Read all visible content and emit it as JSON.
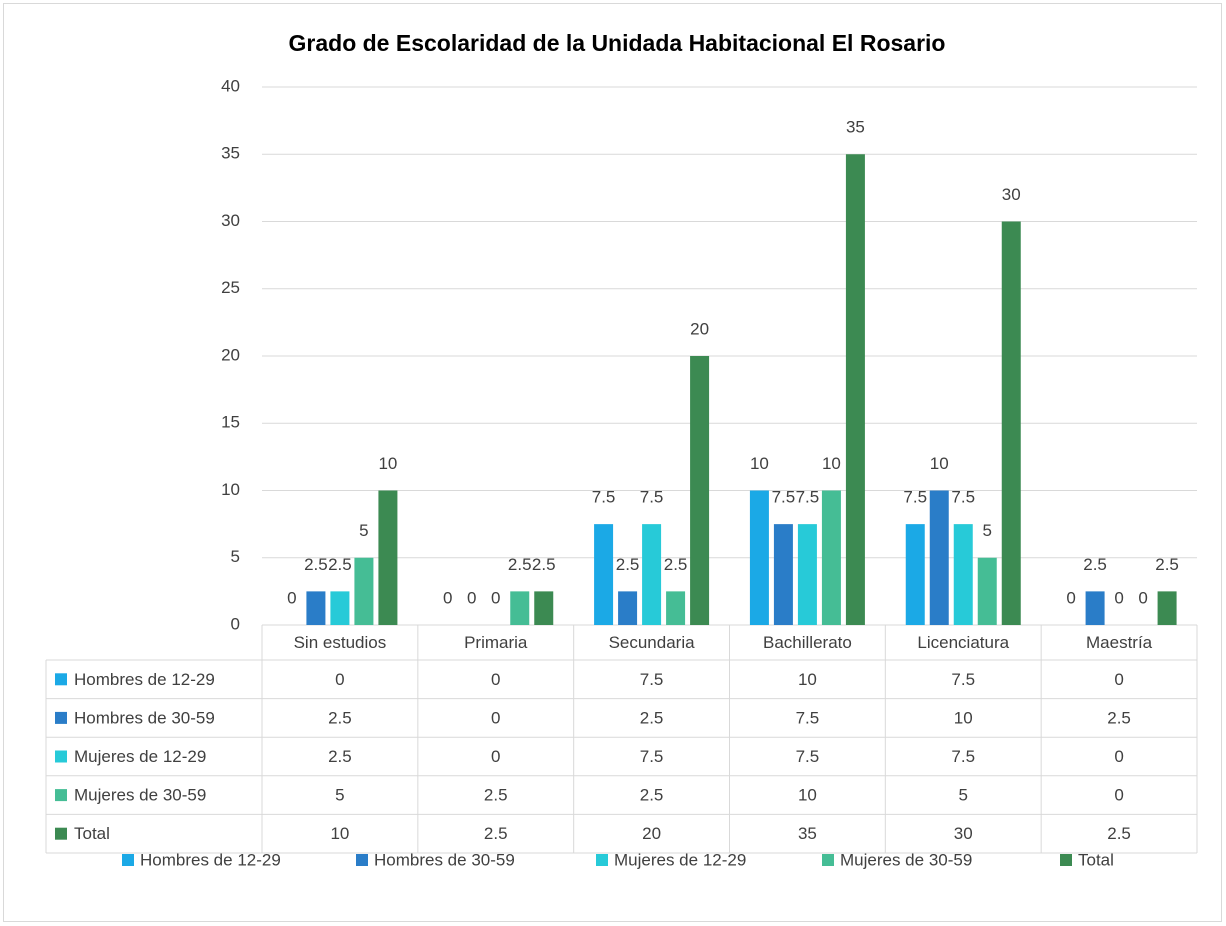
{
  "chart_data": {
    "type": "bar",
    "title": "Grado de Escolaridad de la Unidada Habitacional El Rosario",
    "categories": [
      "Sin estudios",
      "Primaria",
      "Secundaria",
      "Bachillerato",
      "Licenciatura",
      "Maestría"
    ],
    "series": [
      {
        "name": "Hombres de 12-29",
        "color": "#1ba9e6",
        "values": [
          0,
          0,
          7.5,
          10,
          7.5,
          0
        ]
      },
      {
        "name": "Hombres de 30-59",
        "color": "#2a7dc8",
        "values": [
          2.5,
          0,
          2.5,
          7.5,
          10,
          2.5
        ]
      },
      {
        "name": "Mujeres de 12-29",
        "color": "#27cad8",
        "values": [
          2.5,
          0,
          7.5,
          7.5,
          7.5,
          0
        ]
      },
      {
        "name": "Mujeres de 30-59",
        "color": "#45bd95",
        "values": [
          5,
          2.5,
          2.5,
          10,
          5,
          0
        ]
      },
      {
        "name": "Total",
        "color": "#3c8a52",
        "values": [
          10,
          2.5,
          20,
          35,
          30,
          2.5
        ]
      }
    ],
    "ylim": [
      0,
      40
    ],
    "yticks": [
      0,
      5,
      10,
      15,
      20,
      25,
      30,
      35,
      40
    ],
    "grid": true,
    "legend": "bottom"
  }
}
